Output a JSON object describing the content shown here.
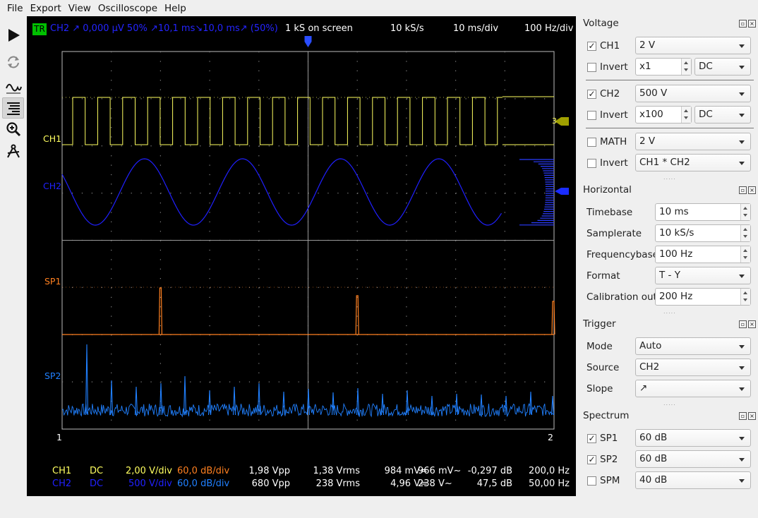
{
  "menu": [
    "File",
    "Export",
    "View",
    "Oscilloscope",
    "Help"
  ],
  "toolbar": {
    "icons": [
      "play-icon",
      "refresh-icon",
      "waveform-icon",
      "spectrum-bars-icon",
      "zoom-icon",
      "measure-icon"
    ]
  },
  "scope": {
    "header": {
      "tr": "TR",
      "trigger_info": "CH2  ↗  0,000 µV  50%  ↗10,1 ms↘10,0 ms↗ (50%)",
      "samples": "1 kS on screen",
      "rate": "10 kS/s",
      "timebase": "10 ms/div",
      "freqbase": "100 Hz/div"
    },
    "labels": {
      "ch1": "CH1",
      "ch2": "CH2",
      "sp1": "SP1",
      "sp2": "SP2",
      "cursor1": "1",
      "cursor2": "2",
      "marker3": "3"
    },
    "colors": {
      "ch1": "#ffff60",
      "ch2": "#2020ff",
      "sp1": "#ff8020",
      "sp2": "#2080ff",
      "grid": "#808080"
    },
    "footer": {
      "rows": [
        {
          "ch": "CH1",
          "coupling": "DC",
          "vdiv": "2,00 V/div",
          "dbdiv": "60,0 dB/div",
          "vpp": "1,98 Vpp",
          "vrms": "1,38 Vrms",
          "vdc": "984 mV=",
          "vac": "966 mV~",
          "db": "-0,297 dB",
          "freq": "200,0 Hz"
        },
        {
          "ch": "CH2",
          "coupling": "DC",
          "vdiv": "500 V/div",
          "dbdiv": "60,0 dB/div",
          "vpp": "680 Vpp",
          "vrms": "238 Vrms",
          "vdc": "4,96 V=",
          "vac": "238 V~",
          "db": "47,5 dB",
          "freq": "50,00 Hz"
        }
      ]
    }
  },
  "panel": {
    "voltage": {
      "title": "Voltage",
      "ch1": {
        "label": "CH1",
        "checked": true,
        "value": "2 V"
      },
      "ch1_invert": {
        "label": "Invert",
        "checked": false,
        "probe": "x1",
        "coupling": "DC"
      },
      "ch2": {
        "label": "CH2",
        "checked": true,
        "value": "500 V"
      },
      "ch2_invert": {
        "label": "Invert",
        "checked": false,
        "probe": "x100",
        "coupling": "DC"
      },
      "math": {
        "label": "MATH",
        "checked": false,
        "value": "2 V"
      },
      "math_invert": {
        "label": "Invert",
        "checked": false,
        "mode": "CH1 * CH2"
      }
    },
    "horizontal": {
      "title": "Horizontal",
      "timebase": {
        "label": "Timebase",
        "value": "10 ms"
      },
      "samplerate": {
        "label": "Samplerate",
        "value": "10 kS/s"
      },
      "frequencybase": {
        "label": "Frequencybase",
        "value": "100 Hz"
      },
      "format": {
        "label": "Format",
        "value": "T - Y"
      },
      "calibration": {
        "label": "Calibration out",
        "value": "200 Hz"
      }
    },
    "trigger": {
      "title": "Trigger",
      "mode": {
        "label": "Mode",
        "value": "Auto"
      },
      "source": {
        "label": "Source",
        "value": "CH2"
      },
      "slope": {
        "label": "Slope",
        "value": "↗"
      }
    },
    "spectrum": {
      "title": "Spectrum",
      "sp1": {
        "label": "SP1",
        "checked": true,
        "value": "60 dB"
      },
      "sp2": {
        "label": "SP2",
        "checked": true,
        "value": "60 dB"
      },
      "spm": {
        "label": "SPM",
        "checked": false,
        "value": "40 dB"
      }
    }
  }
}
